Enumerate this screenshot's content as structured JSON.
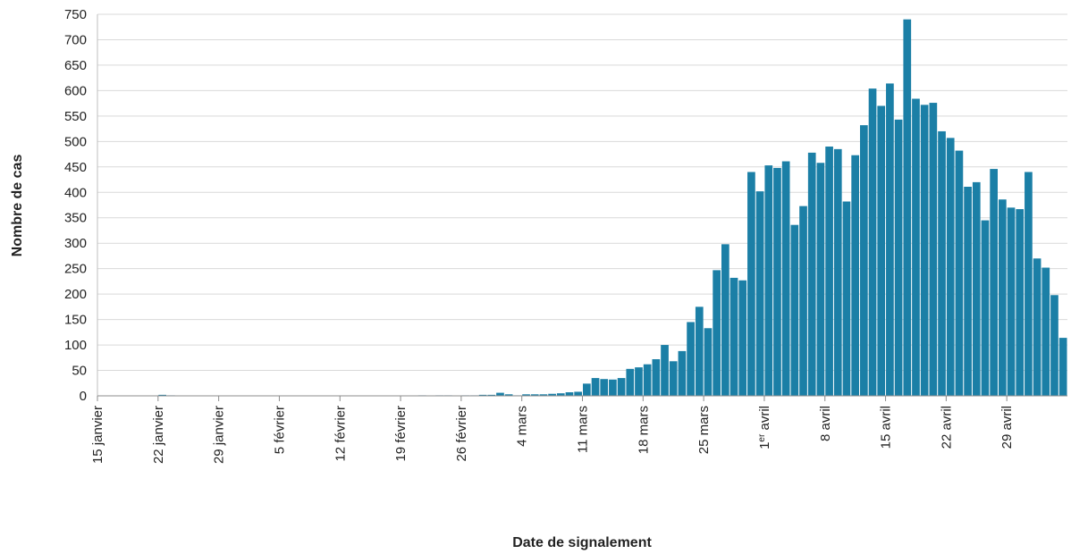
{
  "chart_data": {
    "type": "bar",
    "title": "",
    "xlabel": "Date de signalement",
    "ylabel": "Nombre de cas",
    "ylim": [
      0,
      750
    ],
    "y_ticks": [
      0,
      50,
      100,
      150,
      200,
      250,
      300,
      350,
      400,
      450,
      500,
      550,
      600,
      650,
      700,
      750
    ],
    "grid": "horizontal",
    "bar_color": "#1b7fa6",
    "x_start": "15 janvier",
    "x_tick_labels": [
      {
        "main": "15 janvier",
        "sup": "",
        "rest": ""
      },
      {
        "main": "22 janvier",
        "sup": "",
        "rest": ""
      },
      {
        "main": "29 janvier",
        "sup": "",
        "rest": ""
      },
      {
        "main": "5 février",
        "sup": "",
        "rest": ""
      },
      {
        "main": "12 février",
        "sup": "",
        "rest": ""
      },
      {
        "main": "19 février",
        "sup": "",
        "rest": ""
      },
      {
        "main": "26 février",
        "sup": "",
        "rest": ""
      },
      {
        "main": "4 mars",
        "sup": "",
        "rest": ""
      },
      {
        "main": "11 mars",
        "sup": "",
        "rest": ""
      },
      {
        "main": "18 mars",
        "sup": "",
        "rest": ""
      },
      {
        "main": "25 mars",
        "sup": "",
        "rest": ""
      },
      {
        "main": "1",
        "sup": "er",
        "rest": " avril"
      },
      {
        "main": "8 avril",
        "sup": "",
        "rest": ""
      },
      {
        "main": "15 avril",
        "sup": "",
        "rest": ""
      },
      {
        "main": "22 avril",
        "sup": "",
        "rest": ""
      },
      {
        "main": "29 avril",
        "sup": "",
        "rest": ""
      }
    ],
    "values": [
      0,
      0,
      0,
      0,
      0,
      0,
      0,
      2,
      1,
      0,
      0,
      0,
      0,
      0,
      0,
      0,
      0,
      0,
      0,
      0,
      0,
      0,
      0,
      0,
      0,
      0,
      0,
      0,
      0,
      0,
      0,
      0,
      0,
      0,
      0,
      0,
      0,
      1,
      0,
      1,
      1,
      0,
      1,
      1,
      2,
      2,
      6,
      3,
      1,
      3,
      3,
      3,
      4,
      5,
      7,
      8,
      24,
      35,
      33,
      32,
      35,
      53,
      56,
      62,
      72,
      100,
      68,
      88,
      145,
      175,
      133,
      247,
      298,
      232,
      227,
      440,
      402,
      453,
      448,
      461,
      336,
      373,
      478,
      458,
      490,
      485,
      382,
      473,
      532,
      604,
      570,
      614,
      543,
      740,
      584,
      572,
      576,
      520,
      507,
      482,
      411,
      420,
      345,
      446,
      386,
      370,
      367,
      440,
      270,
      252,
      198,
      114
    ]
  }
}
